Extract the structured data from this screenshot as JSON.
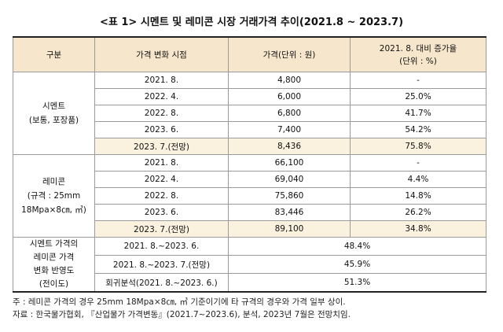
{
  "title": "<표 1> 시멘트 및 레미콘 시장 거래가격 추이(2021.8 ~ 2023.7)",
  "header": {
    "col1": "구분",
    "col2": "가격 변화 시점",
    "col3": "가격(단위 : 원)",
    "col4_line1": "2021. 8. 대비 증가율",
    "col4_line2": "(단위 : %)"
  },
  "cement": {
    "label_line1": "시멘트",
    "label_line2": "(보통, 포장품)",
    "rows": [
      {
        "date": "2021. 8.",
        "price": "4,800",
        "rate": "-"
      },
      {
        "date": "2022. 4.",
        "price": "6,000",
        "rate": "25.0%"
      },
      {
        "date": "2022. 8.",
        "price": "6,800",
        "rate": "41.7%"
      },
      {
        "date": "2023. 6.",
        "price": "7,400",
        "rate": "54.2%"
      },
      {
        "date": "2023. 7.(전망)",
        "price": "8,436",
        "rate": "75.8%"
      }
    ]
  },
  "remicon": {
    "label_line1": "레미콘",
    "label_line2": "(규격 : 25mm",
    "label_line3": "18Mpa×8㎝, ㎥)",
    "rows": [
      {
        "date": "2021. 8.",
        "price": "66,100",
        "rate": "-"
      },
      {
        "date": "2022. 4.",
        "price": "69,040",
        "rate": "4.4%"
      },
      {
        "date": "2022. 8.",
        "price": "75,860",
        "rate": "14.8%"
      },
      {
        "date": "2023. 6.",
        "price": "83,446",
        "rate": "26.2%"
      },
      {
        "date": "2023. 7.(전망)",
        "price": "89,100",
        "rate": "34.8%"
      }
    ]
  },
  "pass_through": {
    "label_line1": "시멘트 가격의",
    "label_line2": "레미콘 가격",
    "label_line3": "변화 반영도",
    "label_line4": "(전이도)",
    "rows": [
      {
        "period": "2021. 8.~2023. 6.",
        "value": "48.4%"
      },
      {
        "period": "2021. 8.~2023. 7.(전망)",
        "value": "45.9%"
      },
      {
        "period": "회귀분석(2021. 8.~2023. 6.)",
        "value": "51.3%"
      }
    ]
  },
  "notes": {
    "note": "주 : 레미콘 가격의 경우 25mm 18Mpa×8㎝, ㎥ 기준이기에 타 규격의 경우와 가격 일부 상이.",
    "source": "자료 : 한국물가협회, 『산업물가 가격변동』(2021.7~2023.6), 분석, 2023년 7월은 전망치임."
  }
}
